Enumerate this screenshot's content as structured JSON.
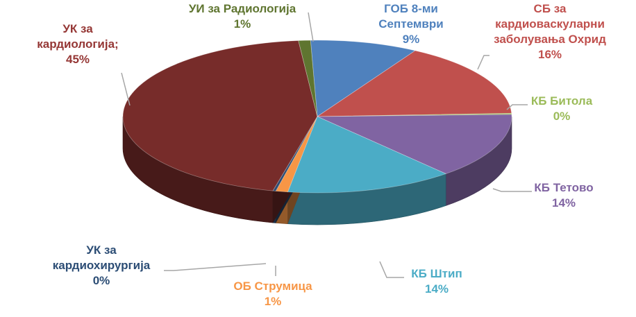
{
  "chart_data": {
    "type": "pie",
    "title": "",
    "slices": [
      {
        "name": "ГОБ 8-ми Септември",
        "name_lines": [
          "ГОБ 8-ми",
          "Септември"
        ],
        "pct_label": "9%",
        "value": 9,
        "color": "#4f81bd",
        "label_color": "#4f81bd"
      },
      {
        "name": "СБ за кардиоваскуларни заболувања Охрид",
        "name_lines": [
          "СБ за",
          "кардиоваскуларни",
          "заболувања Охрид"
        ],
        "pct_label": "16%",
        "value": 16,
        "color": "#c0504d",
        "label_color": "#c0504d"
      },
      {
        "name": "КБ Битола",
        "name_lines": [
          "КБ Битола"
        ],
        "pct_label": "0%",
        "value": 0,
        "color": "#9bbb59",
        "label_color": "#9bbb59"
      },
      {
        "name": "КБ Тетово",
        "name_lines": [
          "КБ Тетово"
        ],
        "pct_label": "14%",
        "value": 14,
        "color": "#8064a2",
        "label_color": "#8064a2"
      },
      {
        "name": "КБ Штип",
        "name_lines": [
          "КБ Штип"
        ],
        "pct_label": "14%",
        "value": 14,
        "color": "#4bacc6",
        "label_color": "#4bacc6"
      },
      {
        "name": "ОБ Струмица",
        "name_lines": [
          "ОБ Струмица"
        ],
        "pct_label": "1%",
        "value": 1,
        "color": "#f79646",
        "label_color": "#f79646"
      },
      {
        "name": "УК за кардиохирургија",
        "name_lines": [
          "УК за",
          "кардиохирургија"
        ],
        "pct_label": "0%",
        "value": 0,
        "color": "#2c4d75",
        "label_color": "#2c4d75"
      },
      {
        "name": "УК за кардиологија;",
        "name_lines": [
          "УК за",
          "кардиологија;"
        ],
        "pct_label": "45%",
        "value": 45,
        "color": "#772c2a",
        "label_color": "#953735"
      },
      {
        "name": "УИ за Радиологија",
        "name_lines": [
          "УИ за Радиологија"
        ],
        "pct_label": "1%",
        "value": 1,
        "color": "#5f7530",
        "label_color": "#5f7530"
      }
    ]
  }
}
